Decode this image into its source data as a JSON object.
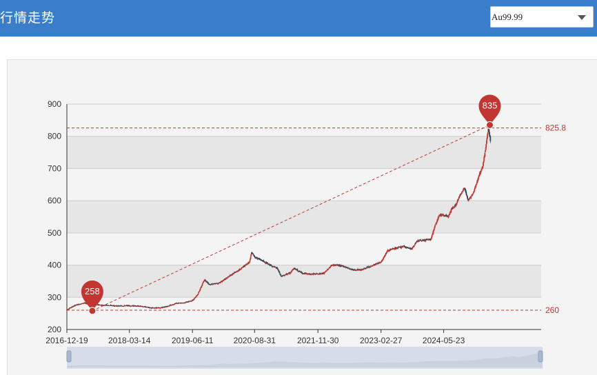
{
  "header": {
    "title": "行情走势"
  },
  "selector": {
    "value": "Au99.99"
  },
  "colors": {
    "header_bg": "#3a7dc9",
    "up": "#c23531",
    "down": "#2f4554",
    "band": "#e6e6e6",
    "accent": "#c23531",
    "datazoom": "#d7dde8"
  },
  "chart_data": {
    "type": "candlestick",
    "ylim": [
      200,
      900
    ],
    "y_ticks": [
      "200",
      "300",
      "400",
      "500",
      "600",
      "700",
      "800",
      "900"
    ],
    "x_range": [
      "2016-12-19",
      "2025-02-12"
    ],
    "x_ticks": [
      "2016-12-19",
      "2018-03-14",
      "2019-06-11",
      "2020-08-31",
      "2021-11-30",
      "2023-02-27",
      "2024-05-23"
    ],
    "price_path": [
      [
        "2016-12-19",
        262
      ],
      [
        "2017-02-20",
        276
      ],
      [
        "2017-04-20",
        282
      ],
      [
        "2017-06-15",
        279
      ],
      [
        "2017-08-20",
        276
      ],
      [
        "2017-10-15",
        275
      ],
      [
        "2017-12-20",
        273
      ],
      [
        "2018-03-14",
        274
      ],
      [
        "2018-06-10",
        272
      ],
      [
        "2018-08-20",
        267
      ],
      [
        "2018-10-20",
        267
      ],
      [
        "2018-12-20",
        273
      ],
      [
        "2019-02-10",
        281
      ],
      [
        "2019-04-10",
        283
      ],
      [
        "2019-06-11",
        290
      ],
      [
        "2019-07-20",
        310
      ],
      [
        "2019-09-05",
        355
      ],
      [
        "2019-10-10",
        340
      ],
      [
        "2019-12-10",
        343
      ],
      [
        "2020-01-10",
        350
      ],
      [
        "2020-03-10",
        368
      ],
      [
        "2020-05-01",
        382
      ],
      [
        "2020-06-20",
        398
      ],
      [
        "2020-07-25",
        410
      ],
      [
        "2020-08-10",
        440
      ],
      [
        "2020-08-31",
        425
      ],
      [
        "2020-10-20",
        415
      ],
      [
        "2020-12-20",
        400
      ],
      [
        "2021-02-10",
        390
      ],
      [
        "2021-03-10",
        365
      ],
      [
        "2021-05-10",
        375
      ],
      [
        "2021-06-10",
        390
      ],
      [
        "2021-08-10",
        375
      ],
      [
        "2021-09-30",
        372
      ],
      [
        "2021-11-30",
        373
      ],
      [
        "2022-01-10",
        374
      ],
      [
        "2022-03-10",
        400
      ],
      [
        "2022-04-20",
        400
      ],
      [
        "2022-06-10",
        395
      ],
      [
        "2022-08-10",
        385
      ],
      [
        "2022-10-01",
        385
      ],
      [
        "2022-12-10",
        395
      ],
      [
        "2023-02-27",
        410
      ],
      [
        "2023-04-15",
        445
      ],
      [
        "2023-06-10",
        452
      ],
      [
        "2023-08-10",
        458
      ],
      [
        "2023-10-05",
        450
      ],
      [
        "2023-11-15",
        475
      ],
      [
        "2024-01-10",
        478
      ],
      [
        "2024-02-20",
        480
      ],
      [
        "2024-03-20",
        520
      ],
      [
        "2024-04-20",
        555
      ],
      [
        "2024-05-23",
        555
      ],
      [
        "2024-06-20",
        550
      ],
      [
        "2024-07-20",
        575
      ],
      [
        "2024-08-20",
        588
      ],
      [
        "2024-09-20",
        620
      ],
      [
        "2024-10-20",
        640
      ],
      [
        "2024-11-15",
        600
      ],
      [
        "2024-12-20",
        622
      ],
      [
        "2025-01-20",
        662
      ],
      [
        "2025-02-12",
        690
      ],
      [
        "2025-02-28",
        705
      ],
      [
        "2025-03-20",
        760
      ],
      [
        "2025-04-10",
        825
      ],
      [
        "2025-04-25",
        785
      ]
    ],
    "markers": [
      {
        "label": "258",
        "x": "2017-06-20",
        "y": 258
      },
      {
        "label": "835",
        "x": "2025-04-20",
        "y": 835
      }
    ],
    "mark_lines": [
      {
        "label": "825.8",
        "y": 825.8
      },
      {
        "label": "260",
        "y": 260
      }
    ],
    "trend_line": [
      [
        "2017-06-20",
        258
      ],
      [
        "2025-04-20",
        835
      ]
    ]
  }
}
